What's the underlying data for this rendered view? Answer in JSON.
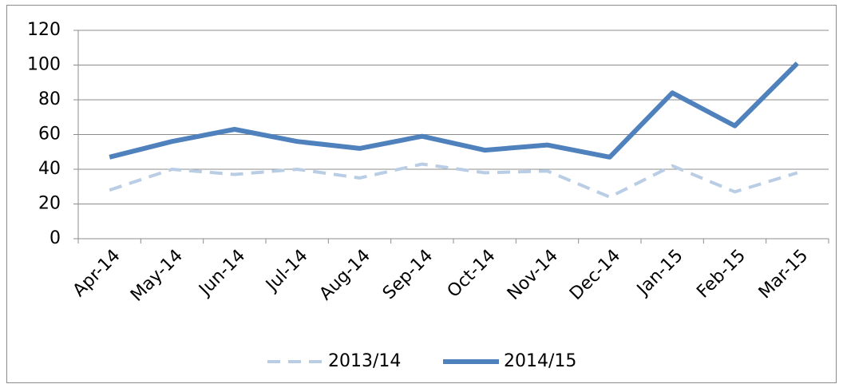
{
  "chart_data": {
    "type": "line",
    "categories": [
      "Apr-14",
      "May-14",
      "Jun-14",
      "Jul-14",
      "Aug-14",
      "Sep-14",
      "Oct-14",
      "Nov-14",
      "Dec-14",
      "Jan-15",
      "Feb-15",
      "Mar-15"
    ],
    "series": [
      {
        "name": "2013/14",
        "color": "#b9cde5",
        "dashed": true,
        "values": [
          28,
          40,
          37,
          40,
          35,
          43,
          38,
          39,
          24,
          42,
          27,
          38
        ]
      },
      {
        "name": "2014/15",
        "color": "#4f81bd",
        "dashed": false,
        "values": [
          47,
          56,
          63,
          56,
          52,
          59,
          51,
          54,
          47,
          84,
          65,
          101
        ]
      }
    ],
    "ylim": [
      0,
      120
    ],
    "yticks": [
      0,
      20,
      40,
      60,
      80,
      100,
      120
    ],
    "grid": true,
    "legend": "bottom"
  }
}
